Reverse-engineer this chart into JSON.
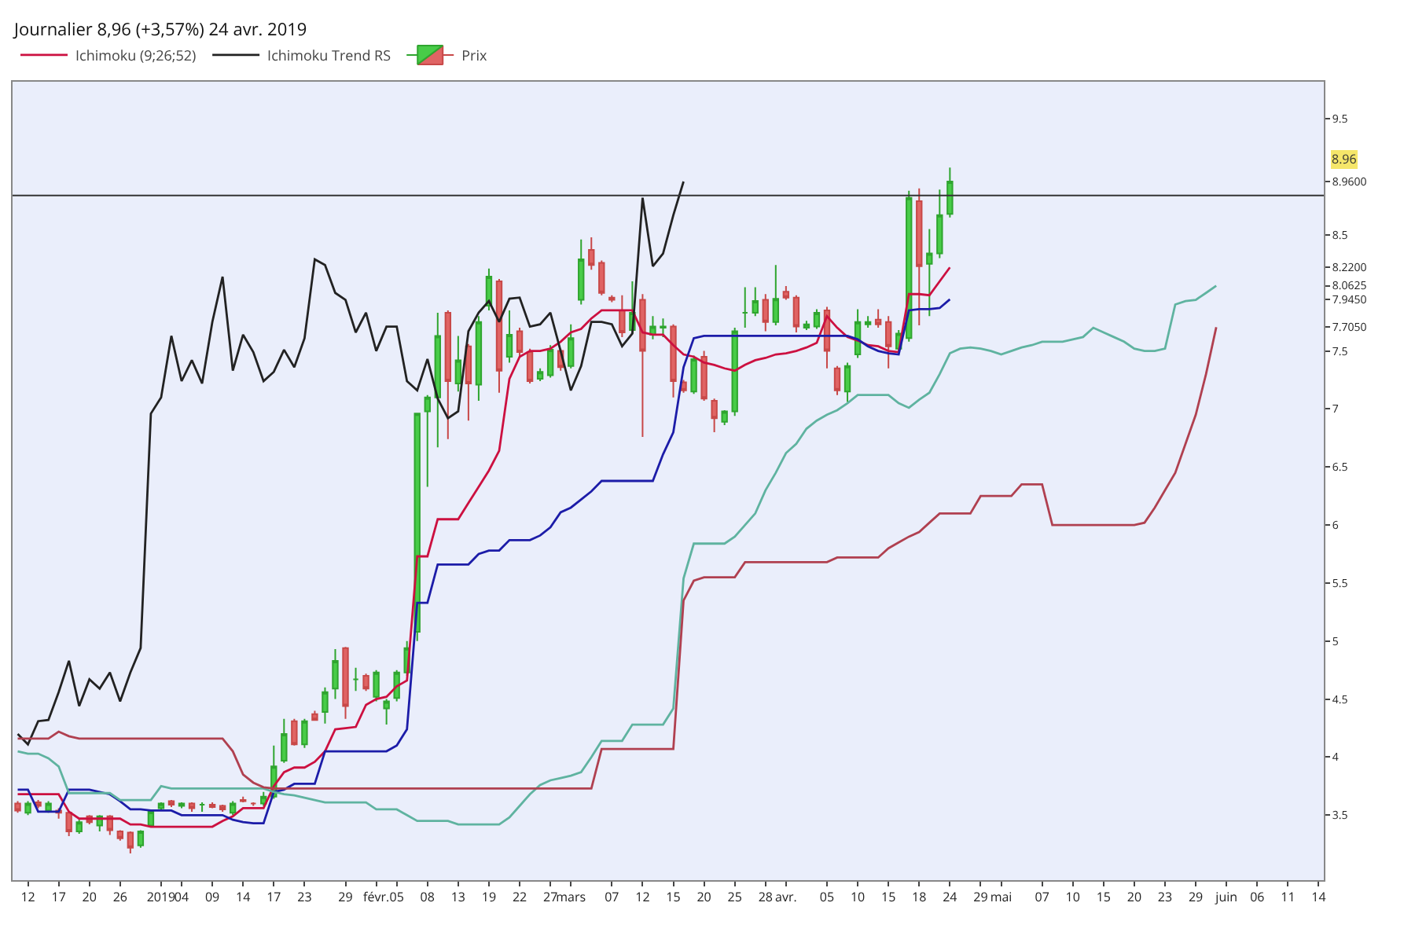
{
  "chart_data": {
    "type": "candlestick",
    "title": "Journalier 8,96 (+3,57%) 24 avr. 2019",
    "categories": [
      null,
      "12",
      null,
      null,
      "17",
      null,
      null,
      "20",
      null,
      null,
      "26",
      null,
      null,
      null,
      "2019",
      null,
      "04",
      null,
      null,
      "09",
      null,
      null,
      "14",
      null,
      null,
      "17",
      null,
      null,
      "23",
      null,
      null,
      null,
      "29",
      null,
      null,
      "févr.",
      null,
      "05",
      null,
      null,
      "08",
      null,
      null,
      "13",
      null,
      null,
      "19",
      null,
      null,
      "22",
      null,
      null,
      "27",
      null,
      "mars",
      null,
      null,
      null,
      "07",
      null,
      null,
      "12",
      null,
      null,
      "15",
      null,
      null,
      "20",
      null,
      null,
      "25",
      null,
      null,
      "28",
      null,
      "avr.",
      null,
      null,
      null,
      "05",
      null,
      null,
      "10",
      null,
      null,
      "15",
      null,
      null,
      "18",
      null,
      null,
      "24",
      null,
      null,
      "29",
      null,
      "mai",
      null,
      null,
      null,
      "07",
      null,
      null,
      "10",
      null,
      null,
      "15",
      null,
      null,
      "20",
      null,
      null,
      "23",
      null,
      null,
      "29",
      null,
      null,
      "juin",
      null,
      null,
      "06",
      null,
      null,
      "11",
      null,
      null,
      "14"
    ],
    "series": [
      {
        "name": "Prix",
        "ohlc": [
          [
            3.6,
            3.62,
            3.52,
            3.54
          ],
          [
            3.52,
            3.62,
            3.5,
            3.6
          ],
          [
            3.61,
            3.63,
            3.56,
            3.58
          ],
          [
            3.54,
            3.62,
            3.52,
            3.6
          ],
          [
            3.54,
            3.56,
            3.47,
            3.52
          ],
          [
            3.52,
            3.53,
            3.32,
            3.36
          ],
          [
            3.36,
            3.46,
            3.34,
            3.44
          ],
          [
            3.49,
            3.5,
            3.42,
            3.44
          ],
          [
            3.41,
            3.5,
            3.36,
            3.49
          ],
          [
            3.49,
            3.5,
            3.33,
            3.37
          ],
          [
            3.36,
            3.37,
            3.28,
            3.3
          ],
          [
            3.35,
            3.36,
            3.17,
            3.22
          ],
          [
            3.24,
            3.37,
            3.22,
            3.36
          ],
          [
            3.41,
            3.55,
            3.4,
            3.53
          ],
          [
            3.56,
            3.61,
            3.55,
            3.6
          ],
          [
            3.62,
            3.63,
            3.57,
            3.59
          ],
          [
            3.58,
            3.61,
            3.56,
            3.6
          ],
          [
            3.6,
            3.61,
            3.53,
            3.56
          ],
          [
            3.59,
            3.61,
            3.53,
            3.59
          ],
          [
            3.59,
            3.61,
            3.56,
            3.57
          ],
          [
            3.58,
            3.59,
            3.53,
            3.55
          ],
          [
            3.52,
            3.62,
            3.5,
            3.6
          ],
          [
            3.63,
            3.66,
            3.61,
            3.62
          ],
          [
            3.6,
            3.61,
            3.58,
            3.6
          ],
          [
            3.6,
            3.7,
            3.58,
            3.66
          ],
          [
            3.66,
            4.1,
            3.64,
            3.92
          ],
          [
            3.97,
            4.33,
            3.95,
            4.2
          ],
          [
            4.31,
            4.33,
            4.1,
            4.11
          ],
          [
            4.11,
            4.33,
            4.08,
            4.31
          ],
          [
            4.37,
            4.4,
            4.32,
            4.32
          ],
          [
            4.39,
            4.6,
            4.29,
            4.56
          ],
          [
            4.59,
            4.93,
            4.5,
            4.83
          ],
          [
            4.94,
            4.95,
            4.33,
            4.44
          ],
          [
            4.67,
            4.77,
            4.57,
            4.67
          ],
          [
            4.7,
            4.72,
            4.57,
            4.59
          ],
          [
            4.52,
            4.75,
            4.48,
            4.73
          ],
          [
            4.42,
            4.5,
            4.28,
            4.48
          ],
          [
            4.51,
            4.75,
            4.48,
            4.73
          ],
          [
            4.73,
            5.0,
            4.7,
            4.94
          ],
          [
            5.08,
            6.96,
            5.0,
            6.96
          ],
          [
            6.98,
            7.12,
            6.33,
            7.1
          ],
          [
            7.1,
            7.83,
            6.67,
            7.63
          ],
          [
            7.83,
            7.85,
            6.74,
            7.24
          ],
          [
            7.22,
            7.63,
            7.15,
            7.42
          ],
          [
            7.54,
            7.56,
            6.9,
            7.22
          ],
          [
            7.21,
            7.8,
            7.07,
            7.75
          ],
          [
            7.89,
            8.21,
            7.85,
            8.14
          ],
          [
            8.1,
            8.12,
            7.14,
            7.33
          ],
          [
            7.45,
            7.85,
            7.4,
            7.64
          ],
          [
            7.67,
            7.7,
            7.45,
            7.49
          ],
          [
            7.49,
            7.52,
            7.22,
            7.24
          ],
          [
            7.26,
            7.35,
            7.24,
            7.32
          ],
          [
            7.29,
            7.55,
            7.27,
            7.51
          ],
          [
            7.5,
            7.52,
            7.33,
            7.36
          ],
          [
            7.37,
            7.73,
            7.35,
            7.61
          ],
          [
            7.94,
            8.46,
            7.9,
            8.29
          ],
          [
            8.37,
            8.48,
            8.2,
            8.24
          ],
          [
            8.26,
            8.28,
            7.98,
            8.0
          ],
          [
            7.96,
            7.98,
            7.92,
            7.94
          ],
          [
            7.85,
            7.98,
            7.62,
            7.66
          ],
          [
            7.68,
            8.1,
            7.65,
            7.83
          ],
          [
            7.94,
            7.99,
            6.76,
            7.5
          ],
          [
            7.64,
            7.8,
            7.6,
            7.71
          ],
          [
            7.7,
            7.78,
            7.62,
            7.71
          ],
          [
            7.71,
            7.73,
            7.1,
            7.24
          ],
          [
            7.23,
            7.25,
            7.14,
            7.16
          ],
          [
            7.15,
            7.46,
            7.13,
            7.43
          ],
          [
            7.45,
            7.5,
            7.07,
            7.09
          ],
          [
            7.07,
            7.09,
            6.8,
            6.92
          ],
          [
            6.89,
            6.99,
            6.86,
            6.98
          ],
          [
            6.98,
            7.7,
            6.94,
            7.67
          ],
          [
            7.83,
            8.05,
            7.7,
            7.83
          ],
          [
            7.83,
            8.05,
            7.8,
            7.93
          ],
          [
            7.94,
            7.99,
            7.67,
            7.75
          ],
          [
            7.75,
            8.24,
            7.72,
            7.95
          ],
          [
            8.01,
            8.06,
            7.94,
            7.96
          ],
          [
            7.96,
            7.98,
            7.66,
            7.71
          ],
          [
            7.7,
            7.76,
            7.68,
            7.73
          ],
          [
            7.71,
            7.86,
            7.69,
            7.83
          ],
          [
            7.85,
            7.88,
            7.35,
            7.5
          ],
          [
            7.35,
            7.37,
            7.12,
            7.16
          ],
          [
            7.15,
            7.4,
            7.06,
            7.37
          ],
          [
            7.47,
            7.86,
            7.44,
            7.75
          ],
          [
            7.73,
            7.8,
            7.7,
            7.75
          ],
          [
            7.77,
            7.86,
            7.7,
            7.73
          ],
          [
            7.75,
            7.8,
            7.35,
            7.54
          ],
          [
            7.52,
            7.68,
            7.5,
            7.65
          ],
          [
            7.61,
            8.88,
            7.58,
            8.82
          ],
          [
            8.79,
            8.9,
            7.72,
            8.23
          ],
          [
            8.25,
            8.55,
            7.8,
            8.34
          ],
          [
            8.34,
            8.89,
            8.3,
            8.67
          ],
          [
            8.68,
            9.08,
            8.65,
            8.96
          ],
          null,
          null,
          null,
          null,
          null,
          null,
          null,
          null,
          null,
          null,
          null,
          null,
          null,
          null,
          null,
          null,
          null,
          null,
          null,
          null,
          null,
          null,
          null,
          null,
          null,
          null,
          null,
          null,
          null,
          null,
          null,
          null,
          null,
          null,
          null,
          null
        ]
      },
      {
        "type": "line",
        "name": "Ichimoku (9;26;52)",
        "color": "#cc1040",
        "values": [
          3.68,
          3.68,
          3.68,
          3.68,
          3.68,
          3.53,
          3.47,
          3.47,
          3.47,
          3.47,
          3.47,
          3.42,
          3.42,
          3.4,
          3.4,
          3.4,
          3.4,
          3.4,
          3.4,
          3.4,
          3.45,
          3.49,
          3.56,
          3.56,
          3.56,
          3.75,
          3.87,
          3.91,
          3.91,
          3.96,
          4.05,
          4.24,
          4.25,
          4.26,
          4.45,
          4.5,
          4.52,
          4.61,
          4.66,
          5.73,
          5.73,
          6.05,
          6.05,
          6.05,
          6.19,
          6.33,
          6.47,
          6.64,
          7.26,
          7.45,
          7.5,
          7.5,
          7.52,
          7.58,
          7.66,
          7.69,
          7.78,
          7.85,
          7.85,
          7.85,
          7.85,
          7.66,
          7.64,
          7.64,
          7.55,
          7.47,
          7.45,
          7.4,
          7.38,
          7.35,
          7.33,
          7.38,
          7.42,
          7.44,
          7.47,
          7.48,
          7.5,
          7.53,
          7.57,
          7.8,
          7.7,
          7.62,
          7.59,
          7.55,
          7.54,
          7.5,
          7.49,
          7.99,
          7.99,
          7.98,
          8.1,
          8.22,
          null,
          null,
          null,
          null,
          null,
          null,
          null,
          null,
          null,
          null,
          null,
          null,
          null,
          null,
          null,
          null,
          null,
          null,
          null,
          null,
          null,
          null,
          null,
          null,
          null,
          null,
          null,
          null,
          null,
          null,
          null,
          null,
          null,
          null,
          null,
          null
        ]
      },
      {
        "type": "line",
        "color": "#1c1ca8",
        "values": [
          3.72,
          3.72,
          3.53,
          3.53,
          3.53,
          3.72,
          3.72,
          3.72,
          3.7,
          3.68,
          3.62,
          3.55,
          3.55,
          3.54,
          3.54,
          3.54,
          3.5,
          3.5,
          3.5,
          3.5,
          3.5,
          3.46,
          3.44,
          3.43,
          3.43,
          3.7,
          3.72,
          3.77,
          3.77,
          3.77,
          4.05,
          4.05,
          4.05,
          4.05,
          4.05,
          4.05,
          4.05,
          4.1,
          4.24,
          5.33,
          5.33,
          5.66,
          5.66,
          5.66,
          5.66,
          5.75,
          5.78,
          5.78,
          5.87,
          5.87,
          5.87,
          5.91,
          5.98,
          6.11,
          6.15,
          6.22,
          6.29,
          6.38,
          6.38,
          6.38,
          6.38,
          6.38,
          6.38,
          6.61,
          6.8,
          7.36,
          7.61,
          7.63,
          7.63,
          7.63,
          7.63,
          7.63,
          7.63,
          7.63,
          7.63,
          7.63,
          7.63,
          7.63,
          7.63,
          7.63,
          7.63,
          7.63,
          7.6,
          7.54,
          7.5,
          7.48,
          7.47,
          7.85,
          7.86,
          7.86,
          7.87,
          7.945,
          null,
          null,
          null,
          null,
          null,
          null,
          null,
          null,
          null,
          null,
          null,
          null,
          null,
          null,
          null,
          null,
          null,
          null,
          null,
          null,
          null,
          null,
          null,
          null,
          null,
          null,
          null,
          null,
          null,
          null,
          null,
          null,
          null,
          null,
          null,
          null
        ]
      },
      {
        "type": "line",
        "name": "Ichimoku Trend RS",
        "color": "#222222",
        "values": [
          4.2,
          4.11,
          4.31,
          4.32,
          4.56,
          4.83,
          4.44,
          4.67,
          4.59,
          4.73,
          4.48,
          4.73,
          4.94,
          6.96,
          7.1,
          7.63,
          7.24,
          7.42,
          7.22,
          7.75,
          8.14,
          7.33,
          7.64,
          7.49,
          7.24,
          7.32,
          7.51,
          7.36,
          7.61,
          8.29,
          8.24,
          8.0,
          7.94,
          7.66,
          7.83,
          7.5,
          7.71,
          7.71,
          7.24,
          7.16,
          7.43,
          7.09,
          6.92,
          6.98,
          7.67,
          7.83,
          7.93,
          7.75,
          7.95,
          7.96,
          7.71,
          7.73,
          7.83,
          7.5,
          7.16,
          7.37,
          7.75,
          7.75,
          7.73,
          7.54,
          7.65,
          8.82,
          8.23,
          8.34,
          8.67,
          8.96,
          null,
          null,
          null,
          null,
          null,
          null,
          null,
          null,
          null,
          null,
          null,
          null,
          null,
          null,
          null,
          null,
          null,
          null,
          null,
          null,
          null,
          null,
          null,
          null,
          null,
          null,
          null,
          null,
          null,
          null,
          null,
          null,
          null,
          null,
          null,
          null,
          null,
          null,
          null,
          null,
          null,
          null,
          null,
          null,
          null,
          null,
          null,
          null,
          null,
          null,
          null,
          null,
          null,
          null,
          null,
          null,
          null,
          null,
          null,
          null,
          null,
          null
        ]
      },
      {
        "type": "line",
        "color": "#5fb3a0",
        "values": [
          4.05,
          4.03,
          4.03,
          3.99,
          3.92,
          3.69,
          3.69,
          3.69,
          3.69,
          3.69,
          3.63,
          3.63,
          3.63,
          3.63,
          3.75,
          3.73,
          3.73,
          3.73,
          3.73,
          3.73,
          3.73,
          3.73,
          3.73,
          3.73,
          3.73,
          3.7,
          3.68,
          3.67,
          3.65,
          3.63,
          3.61,
          3.61,
          3.61,
          3.61,
          3.61,
          3.55,
          3.55,
          3.55,
          3.5,
          3.45,
          3.45,
          3.45,
          3.45,
          3.42,
          3.42,
          3.42,
          3.42,
          3.42,
          3.48,
          3.58,
          3.68,
          3.76,
          3.8,
          3.82,
          3.84,
          3.87,
          4.0,
          4.14,
          4.14,
          4.14,
          4.28,
          4.28,
          4.28,
          4.28,
          4.42,
          5.54,
          5.84,
          5.84,
          5.84,
          5.84,
          5.9,
          6.0,
          6.1,
          6.3,
          6.45,
          6.62,
          6.7,
          6.83,
          6.9,
          6.95,
          6.99,
          7.05,
          7.12,
          7.12,
          7.12,
          7.12,
          7.05,
          7.01,
          7.08,
          7.14,
          7.3,
          7.48,
          7.52,
          7.53,
          7.52,
          7.5,
          7.47,
          7.5,
          7.53,
          7.55,
          7.58,
          7.58,
          7.58,
          7.6,
          7.62,
          7.7,
          7.66,
          7.62,
          7.58,
          7.52,
          7.5,
          7.5,
          7.52,
          7.9,
          7.93,
          7.94,
          8.0,
          8.0625,
          null,
          null,
          null,
          null,
          null,
          null,
          null,
          null,
          null,
          null
        ]
      },
      {
        "type": "line",
        "color": "#b04050",
        "values": [
          4.16,
          4.16,
          4.16,
          4.16,
          4.22,
          4.18,
          4.16,
          4.16,
          4.16,
          4.16,
          4.16,
          4.16,
          4.16,
          4.16,
          4.16,
          4.16,
          4.16,
          4.16,
          4.16,
          4.16,
          4.16,
          4.05,
          3.85,
          3.78,
          3.74,
          3.73,
          3.73,
          3.73,
          3.73,
          3.73,
          3.73,
          3.73,
          3.73,
          3.73,
          3.73,
          3.73,
          3.73,
          3.73,
          3.73,
          3.73,
          3.73,
          3.73,
          3.73,
          3.73,
          3.73,
          3.73,
          3.73,
          3.73,
          3.73,
          3.73,
          3.73,
          3.73,
          3.73,
          3.73,
          3.73,
          3.73,
          3.73,
          4.07,
          4.07,
          4.07,
          4.07,
          4.07,
          4.07,
          4.07,
          4.07,
          5.35,
          5.52,
          5.55,
          5.55,
          5.55,
          5.55,
          5.68,
          5.68,
          5.68,
          5.68,
          5.68,
          5.68,
          5.68,
          5.68,
          5.68,
          5.72,
          5.72,
          5.72,
          5.72,
          5.72,
          5.8,
          5.85,
          5.9,
          5.94,
          6.02,
          6.1,
          6.1,
          6.1,
          6.1,
          6.25,
          6.25,
          6.25,
          6.25,
          6.35,
          6.35,
          6.35,
          6.0,
          6.0,
          6.0,
          6.0,
          6.0,
          6.0,
          6.0,
          6.0,
          6.0,
          6.02,
          6.15,
          6.3,
          6.45,
          6.7,
          6.95,
          7.3,
          7.705,
          null,
          null,
          null,
          null,
          null,
          null,
          null,
          null,
          null,
          null
        ]
      }
    ],
    "ylim": [
      2.94,
      9.82
    ],
    "yticks": [
      3.5,
      4,
      4.5,
      5,
      5.5,
      6,
      6.5,
      7,
      7.5,
      {
        "value": 7.705,
        "label": "7.7050"
      },
      {
        "value": 7.945,
        "label": "7.9450"
      },
      {
        "value": 8.0625,
        "label": "8.0625"
      },
      {
        "value": 8.22,
        "label": "8.2200"
      },
      8.5,
      {
        "value": 8.96,
        "label": "8.9600"
      },
      9.5
    ],
    "ref_lines": [
      {
        "axis": "y",
        "value": 8.84,
        "color": "#333333"
      }
    ],
    "annotations": [
      "8.96"
    ],
    "legend": "top left"
  }
}
